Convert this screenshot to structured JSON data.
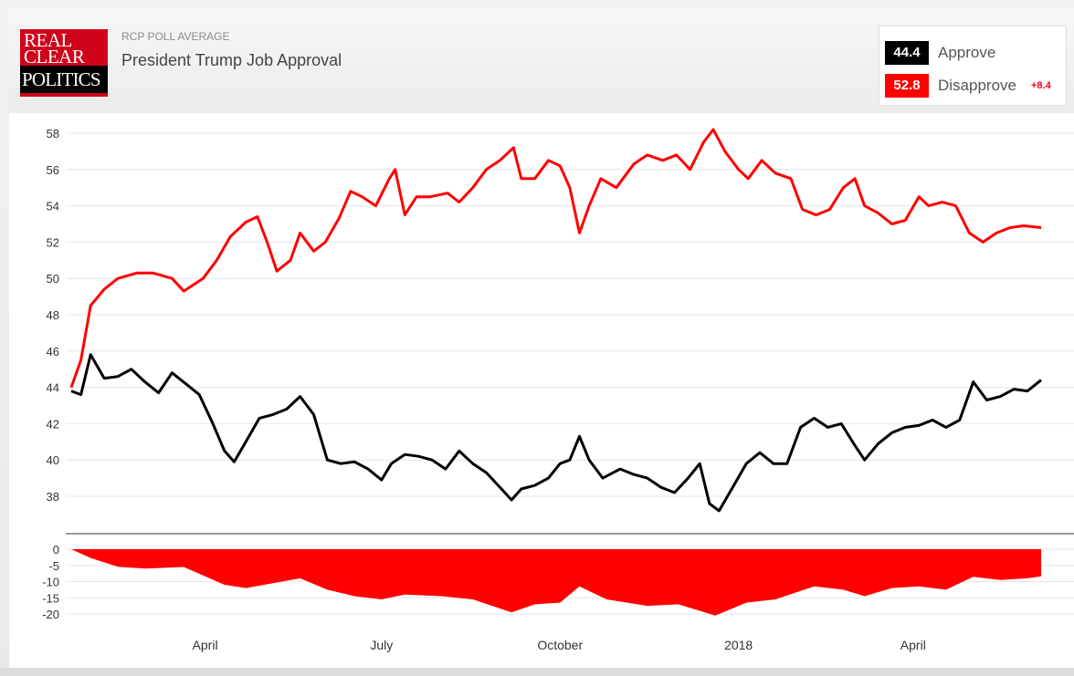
{
  "header": {
    "logo_line1": "REAL",
    "logo_line2": "CLEAR",
    "logo_line3": "POLITICS",
    "subtitle": "RCP POLL AVERAGE",
    "title": "President Trump Job Approval"
  },
  "legend": {
    "approve_value": "44.4",
    "approve_label": "Approve",
    "disapprove_value": "52.8",
    "disapprove_label": "Disapprove",
    "spread": "+8.4"
  },
  "colors": {
    "approve": "#000000",
    "disapprove": "#ff0000",
    "spread_fill": "#ff0000",
    "grid": "#e6e6e6"
  },
  "chart_data": [
    {
      "type": "line",
      "title": "President Trump Job Approval",
      "x_tick_labels": [
        "April",
        "July",
        "October",
        "2018",
        "April"
      ],
      "x_ticks_at": [
        "2017-04-01",
        "2017-07-01",
        "2017-10-01",
        "2018-01-01",
        "2018-04-01"
      ],
      "xlim": [
        "2017-01-22",
        "2018-06-06"
      ],
      "ylim": [
        37,
        58.5
      ],
      "y_ticks": [
        38,
        40,
        42,
        44,
        46,
        48,
        50,
        52,
        54,
        56,
        58
      ],
      "grid": true,
      "series": [
        {
          "name": "Disapprove",
          "color": "#ff0000",
          "points": [
            [
              "2017-01-22",
              44.0
            ],
            [
              "2017-01-27",
              45.5
            ],
            [
              "2017-02-01",
              48.5
            ],
            [
              "2017-02-08",
              49.4
            ],
            [
              "2017-02-15",
              50.0
            ],
            [
              "2017-02-25",
              50.3
            ],
            [
              "2017-03-05",
              50.3
            ],
            [
              "2017-03-15",
              50.0
            ],
            [
              "2017-03-21",
              49.3
            ],
            [
              "2017-03-31",
              50.0
            ],
            [
              "2017-04-07",
              51.0
            ],
            [
              "2017-04-14",
              52.3
            ],
            [
              "2017-04-22",
              53.1
            ],
            [
              "2017-04-28",
              53.4
            ],
            [
              "2017-05-03",
              52.0
            ],
            [
              "2017-05-08",
              50.4
            ],
            [
              "2017-05-15",
              51.0
            ],
            [
              "2017-05-20",
              52.5
            ],
            [
              "2017-05-27",
              51.5
            ],
            [
              "2017-06-02",
              52.0
            ],
            [
              "2017-06-09",
              53.3
            ],
            [
              "2017-06-15",
              54.8
            ],
            [
              "2017-06-21",
              54.5
            ],
            [
              "2017-06-28",
              54.0
            ],
            [
              "2017-07-05",
              55.5
            ],
            [
              "2017-07-08",
              56.0
            ],
            [
              "2017-07-13",
              53.5
            ],
            [
              "2017-07-19",
              54.5
            ],
            [
              "2017-07-26",
              54.5
            ],
            [
              "2017-08-04",
              54.7
            ],
            [
              "2017-08-10",
              54.2
            ],
            [
              "2017-08-17",
              55.0
            ],
            [
              "2017-08-24",
              56.0
            ],
            [
              "2017-08-31",
              56.5
            ],
            [
              "2017-09-07",
              57.2
            ],
            [
              "2017-09-11",
              55.5
            ],
            [
              "2017-09-18",
              55.5
            ],
            [
              "2017-09-25",
              56.5
            ],
            [
              "2017-10-01",
              56.2
            ],
            [
              "2017-10-06",
              55.0
            ],
            [
              "2017-10-11",
              52.5
            ],
            [
              "2017-10-16",
              54.0
            ],
            [
              "2017-10-22",
              55.5
            ],
            [
              "2017-10-30",
              55.0
            ],
            [
              "2017-11-08",
              56.3
            ],
            [
              "2017-11-15",
              56.8
            ],
            [
              "2017-11-23",
              56.5
            ],
            [
              "2017-11-30",
              56.8
            ],
            [
              "2017-12-07",
              56.0
            ],
            [
              "2017-12-14",
              57.5
            ],
            [
              "2017-12-19",
              58.2
            ],
            [
              "2017-12-25",
              57.0
            ],
            [
              "2018-01-01",
              56.0
            ],
            [
              "2018-01-06",
              55.5
            ],
            [
              "2018-01-13",
              56.5
            ],
            [
              "2018-01-20",
              55.8
            ],
            [
              "2018-01-28",
              55.5
            ],
            [
              "2018-02-03",
              53.8
            ],
            [
              "2018-02-10",
              53.5
            ],
            [
              "2018-02-17",
              53.8
            ],
            [
              "2018-02-24",
              55.0
            ],
            [
              "2018-03-02",
              55.5
            ],
            [
              "2018-03-07",
              54.0
            ],
            [
              "2018-03-14",
              53.6
            ],
            [
              "2018-03-21",
              53.0
            ],
            [
              "2018-03-28",
              53.2
            ],
            [
              "2018-04-04",
              54.5
            ],
            [
              "2018-04-09",
              54.0
            ],
            [
              "2018-04-16",
              54.2
            ],
            [
              "2018-04-23",
              54.0
            ],
            [
              "2018-04-30",
              52.5
            ],
            [
              "2018-05-07",
              52.0
            ],
            [
              "2018-05-14",
              52.5
            ],
            [
              "2018-05-21",
              52.8
            ],
            [
              "2018-05-28",
              52.9
            ],
            [
              "2018-06-06",
              52.8
            ]
          ]
        },
        {
          "name": "Approve",
          "color": "#000000",
          "points": [
            [
              "2017-01-22",
              43.8
            ],
            [
              "2017-01-27",
              43.6
            ],
            [
              "2017-02-01",
              45.8
            ],
            [
              "2017-02-08",
              44.5
            ],
            [
              "2017-02-15",
              44.6
            ],
            [
              "2017-02-22",
              45.0
            ],
            [
              "2017-03-01",
              44.3
            ],
            [
              "2017-03-08",
              43.7
            ],
            [
              "2017-03-15",
              44.8
            ],
            [
              "2017-03-22",
              44.2
            ],
            [
              "2017-03-29",
              43.6
            ],
            [
              "2017-04-05",
              42.0
            ],
            [
              "2017-04-11",
              40.5
            ],
            [
              "2017-04-16",
              39.9
            ],
            [
              "2017-04-22",
              41.0
            ],
            [
              "2017-04-29",
              42.3
            ],
            [
              "2017-05-06",
              42.5
            ],
            [
              "2017-05-13",
              42.8
            ],
            [
              "2017-05-20",
              43.5
            ],
            [
              "2017-05-27",
              42.5
            ],
            [
              "2017-06-03",
              40.0
            ],
            [
              "2017-06-10",
              39.8
            ],
            [
              "2017-06-17",
              39.9
            ],
            [
              "2017-06-24",
              39.5
            ],
            [
              "2017-07-01",
              38.9
            ],
            [
              "2017-07-06",
              39.8
            ],
            [
              "2017-07-13",
              40.3
            ],
            [
              "2017-07-20",
              40.2
            ],
            [
              "2017-07-27",
              40.0
            ],
            [
              "2017-08-03",
              39.5
            ],
            [
              "2017-08-10",
              40.5
            ],
            [
              "2017-08-17",
              39.8
            ],
            [
              "2017-08-24",
              39.3
            ],
            [
              "2017-08-31",
              38.5
            ],
            [
              "2017-09-06",
              37.8
            ],
            [
              "2017-09-11",
              38.4
            ],
            [
              "2017-09-18",
              38.6
            ],
            [
              "2017-09-25",
              39.0
            ],
            [
              "2017-10-01",
              39.8
            ],
            [
              "2017-10-06",
              40.0
            ],
            [
              "2017-10-11",
              41.3
            ],
            [
              "2017-10-16",
              40.0
            ],
            [
              "2017-10-23",
              39.0
            ],
            [
              "2017-11-01",
              39.5
            ],
            [
              "2017-11-08",
              39.2
            ],
            [
              "2017-11-15",
              39.0
            ],
            [
              "2017-11-22",
              38.5
            ],
            [
              "2017-11-29",
              38.2
            ],
            [
              "2017-12-06",
              39.0
            ],
            [
              "2017-12-12",
              39.8
            ],
            [
              "2017-12-17",
              37.6
            ],
            [
              "2017-12-22",
              37.2
            ],
            [
              "2017-12-29",
              38.5
            ],
            [
              "2018-01-05",
              39.8
            ],
            [
              "2018-01-12",
              40.4
            ],
            [
              "2018-01-19",
              39.8
            ],
            [
              "2018-01-26",
              39.8
            ],
            [
              "2018-02-02",
              41.8
            ],
            [
              "2018-02-09",
              42.3
            ],
            [
              "2018-02-16",
              41.8
            ],
            [
              "2018-02-23",
              42.0
            ],
            [
              "2018-03-02",
              40.8
            ],
            [
              "2018-03-07",
              40.0
            ],
            [
              "2018-03-14",
              40.9
            ],
            [
              "2018-03-21",
              41.5
            ],
            [
              "2018-03-28",
              41.8
            ],
            [
              "2018-04-04",
              41.9
            ],
            [
              "2018-04-11",
              42.2
            ],
            [
              "2018-04-18",
              41.8
            ],
            [
              "2018-04-25",
              42.2
            ],
            [
              "2018-05-02",
              44.3
            ],
            [
              "2018-05-09",
              43.3
            ],
            [
              "2018-05-16",
              43.5
            ],
            [
              "2018-05-23",
              43.9
            ],
            [
              "2018-05-30",
              43.8
            ],
            [
              "2018-06-06",
              44.4
            ]
          ]
        }
      ]
    },
    {
      "type": "area",
      "ylim": [
        -20,
        0
      ],
      "y_ticks": [
        0,
        -5,
        -10,
        -15,
        -20
      ],
      "series": [
        {
          "name": "Spread",
          "color": "#ff0000",
          "points": [
            [
              "2017-01-22",
              0
            ],
            [
              "2017-02-01",
              -2.7
            ],
            [
              "2017-02-15",
              -5.4
            ],
            [
              "2017-03-01",
              -6.0
            ],
            [
              "2017-03-21",
              -5.5
            ],
            [
              "2017-04-11",
              -11
            ],
            [
              "2017-04-22",
              -12
            ],
            [
              "2017-05-06",
              -10.5
            ],
            [
              "2017-05-20",
              -9.0
            ],
            [
              "2017-06-03",
              -12.5
            ],
            [
              "2017-06-17",
              -14.5
            ],
            [
              "2017-07-01",
              -15.5
            ],
            [
              "2017-07-13",
              -14.0
            ],
            [
              "2017-08-01",
              -14.5
            ],
            [
              "2017-08-17",
              -15.5
            ],
            [
              "2017-09-06",
              -19.5
            ],
            [
              "2017-09-18",
              -17.0
            ],
            [
              "2017-10-01",
              -16.5
            ],
            [
              "2017-10-11",
              -11.5
            ],
            [
              "2017-10-25",
              -15.5
            ],
            [
              "2017-11-15",
              -17.5
            ],
            [
              "2017-12-01",
              -17.0
            ],
            [
              "2017-12-20",
              -20.5
            ],
            [
              "2018-01-05",
              -16.5
            ],
            [
              "2018-01-20",
              -15.5
            ],
            [
              "2018-02-09",
              -11.5
            ],
            [
              "2018-02-24",
              -12.5
            ],
            [
              "2018-03-07",
              -14.5
            ],
            [
              "2018-03-21",
              -12.0
            ],
            [
              "2018-04-04",
              -11.5
            ],
            [
              "2018-04-18",
              -12.5
            ],
            [
              "2018-05-02",
              -8.5
            ],
            [
              "2018-05-16",
              -9.5
            ],
            [
              "2018-05-30",
              -9.0
            ],
            [
              "2018-06-06",
              -8.4
            ]
          ]
        }
      ]
    }
  ]
}
